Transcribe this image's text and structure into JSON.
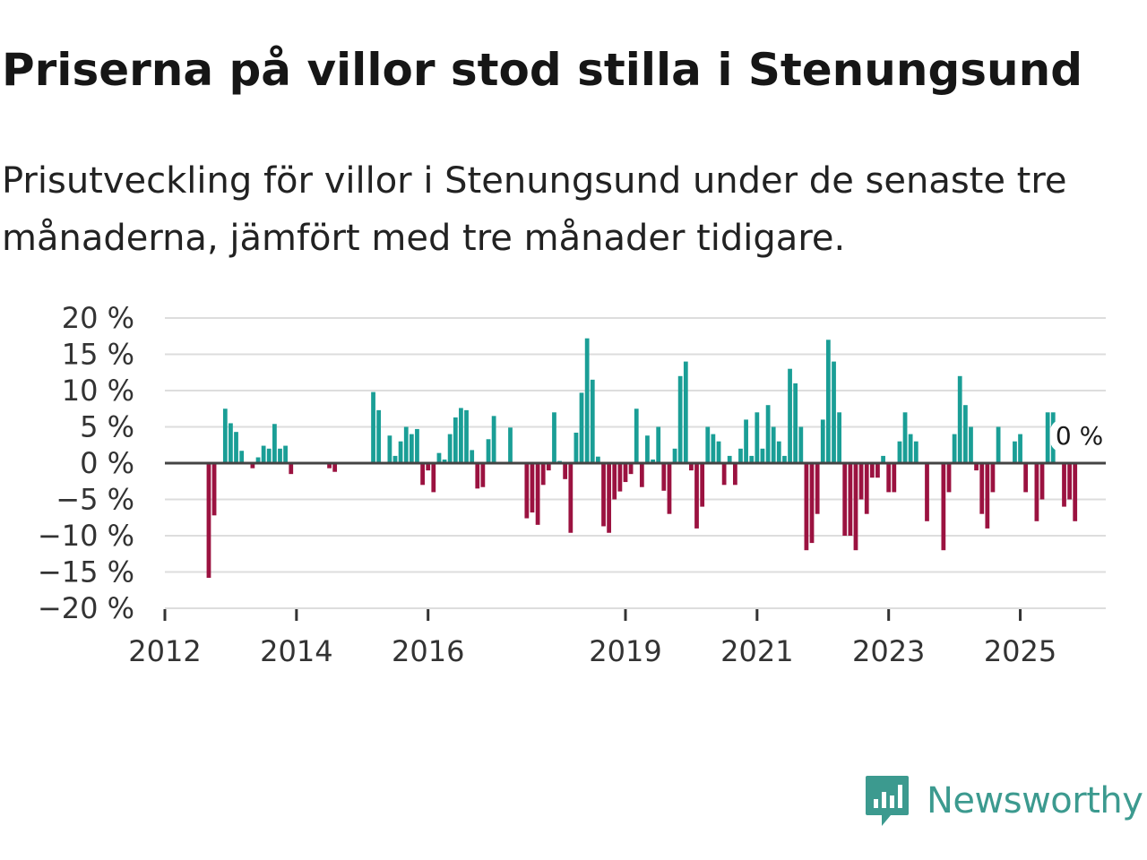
{
  "header": {
    "title": "Priserna på villor stod stilla i Stenungsund",
    "subtitle": "Prisutveckling för villor i Stenungsund under de senaste tre månaderna, jämfört med tre månader tidigare."
  },
  "brand": {
    "name": "Newsworthy",
    "icon": "newsworthy-logo-icon",
    "color": "#3c9a8f"
  },
  "colors": {
    "positive": "#1a9e96",
    "negative": "#9b1240",
    "grid": "#dddddd",
    "zero": "#444444"
  },
  "chart_data": {
    "type": "bar",
    "title": "Priserna på villor stod stilla i Stenungsund",
    "ylabel": "",
    "xlabel": "",
    "ylim": [
      -20,
      20
    ],
    "xlim": [
      2012.0,
      2026.3
    ],
    "y_ticks": [
      {
        "value": 20,
        "label": "20 %"
      },
      {
        "value": 15,
        "label": "15 %"
      },
      {
        "value": 10,
        "label": "10 %"
      },
      {
        "value": 5,
        "label": "5 %"
      },
      {
        "value": 0,
        "label": "0 %"
      },
      {
        "value": -5,
        "label": "−5 %"
      },
      {
        "value": -10,
        "label": "−10 %"
      },
      {
        "value": -15,
        "label": "−15 %"
      },
      {
        "value": -20,
        "label": "−20 %"
      }
    ],
    "x_ticks": [
      {
        "value": 2012,
        "label": "2012"
      },
      {
        "value": 2014,
        "label": "2014"
      },
      {
        "value": 2016,
        "label": "2016"
      },
      {
        "value": 2019,
        "label": "2019"
      },
      {
        "value": 2021,
        "label": "2021"
      },
      {
        "value": 2023,
        "label": "2023"
      },
      {
        "value": 2025,
        "label": "2025"
      }
    ],
    "end_label": "0 %",
    "series": [
      {
        "name": "Prisutveckling",
        "x": [
          2012.667,
          2012.75,
          2012.917,
          2013.0,
          2013.083,
          2013.167,
          2013.333,
          2013.417,
          2013.5,
          2013.583,
          2013.667,
          2013.75,
          2013.833,
          2013.917,
          2014.5,
          2014.583,
          2015.167,
          2015.25,
          2015.417,
          2015.5,
          2015.583,
          2015.667,
          2015.75,
          2015.833,
          2015.917,
          2016.0,
          2016.083,
          2016.167,
          2016.25,
          2016.333,
          2016.417,
          2016.5,
          2016.583,
          2016.667,
          2016.75,
          2016.833,
          2016.917,
          2017.0,
          2017.25,
          2017.5,
          2017.583,
          2017.667,
          2017.75,
          2017.833,
          2017.917,
          2018.0,
          2018.083,
          2018.167,
          2018.25,
          2018.333,
          2018.417,
          2018.5,
          2018.583,
          2018.667,
          2018.75,
          2018.833,
          2018.917,
          2019.0,
          2019.083,
          2019.167,
          2019.25,
          2019.333,
          2019.417,
          2019.5,
          2019.583,
          2019.667,
          2019.75,
          2019.833,
          2019.917,
          2020.0,
          2020.083,
          2020.167,
          2020.25,
          2020.333,
          2020.417,
          2020.5,
          2020.583,
          2020.667,
          2020.75,
          2020.833,
          2020.917,
          2021.0,
          2021.083,
          2021.167,
          2021.25,
          2021.333,
          2021.417,
          2021.5,
          2021.583,
          2021.667,
          2021.75,
          2021.833,
          2021.917,
          2022.0,
          2022.083,
          2022.167,
          2022.25,
          2022.333,
          2022.417,
          2022.5,
          2022.583,
          2022.667,
          2022.75,
          2022.833,
          2022.917,
          2023.0,
          2023.083,
          2023.167,
          2023.25,
          2023.333,
          2023.417,
          2023.583,
          2023.833,
          2023.917,
          2024.0,
          2024.083,
          2024.167,
          2024.25,
          2024.333,
          2024.417,
          2024.5,
          2024.583,
          2024.667,
          2024.917,
          2025.0,
          2025.083,
          2025.25,
          2025.333,
          2025.417,
          2025.5,
          2025.583,
          2025.667,
          2025.75,
          2025.833,
          2025.917
        ],
        "values": [
          -15.8,
          -7.2,
          7.5,
          5.5,
          4.3,
          1.7,
          -0.7,
          0.8,
          2.4,
          2.0,
          5.4,
          2.0,
          2.4,
          -1.5,
          -0.7,
          -1.2,
          9.8,
          7.3,
          3.8,
          1.0,
          3.0,
          5.0,
          4.0,
          4.7,
          -3.0,
          -1.0,
          -4.0,
          1.4,
          0.5,
          4.0,
          6.3,
          7.6,
          7.3,
          1.8,
          -3.5,
          -3.3,
          3.3,
          6.5,
          4.9,
          -7.6,
          -6.8,
          -8.5,
          -3.0,
          -1.0,
          7.0,
          0.3,
          -2.2,
          -9.6,
          4.2,
          9.7,
          17.2,
          11.5,
          0.9,
          -8.7,
          -9.6,
          -5.0,
          -3.9,
          -2.6,
          -1.5,
          7.5,
          -3.3,
          3.8,
          0.5,
          5.0,
          -3.8,
          -7.0,
          2.0,
          12.0,
          14.0,
          -1.0,
          -9.0,
          -6.0,
          5.0,
          4.0,
          3.0,
          -3.0,
          1.0,
          -3.0,
          2.0,
          6.0,
          1.0,
          7.0,
          2.0,
          8.0,
          5.0,
          3.0,
          1.0,
          13.0,
          11.0,
          5.0,
          -12.0,
          -11.0,
          -7.0,
          6.0,
          17.0,
          14.0,
          7.0,
          -10.0,
          -10.0,
          -12.0,
          -5.0,
          -7.0,
          -2.0,
          -2.0,
          1.0,
          -4.0,
          -4.0,
          3.0,
          7.0,
          4.0,
          3.0,
          -8.0,
          -12.0,
          -4.0,
          4.0,
          12.0,
          8.0,
          5.0,
          -1.0,
          -7.0,
          -9.0,
          -4.0,
          5.0,
          3.0,
          4.0,
          -4.0,
          -8.0,
          -5.0,
          7.0,
          7.0,
          0.0,
          -6.0,
          -5.0,
          -8.0,
          0.0
        ]
      }
    ]
  }
}
